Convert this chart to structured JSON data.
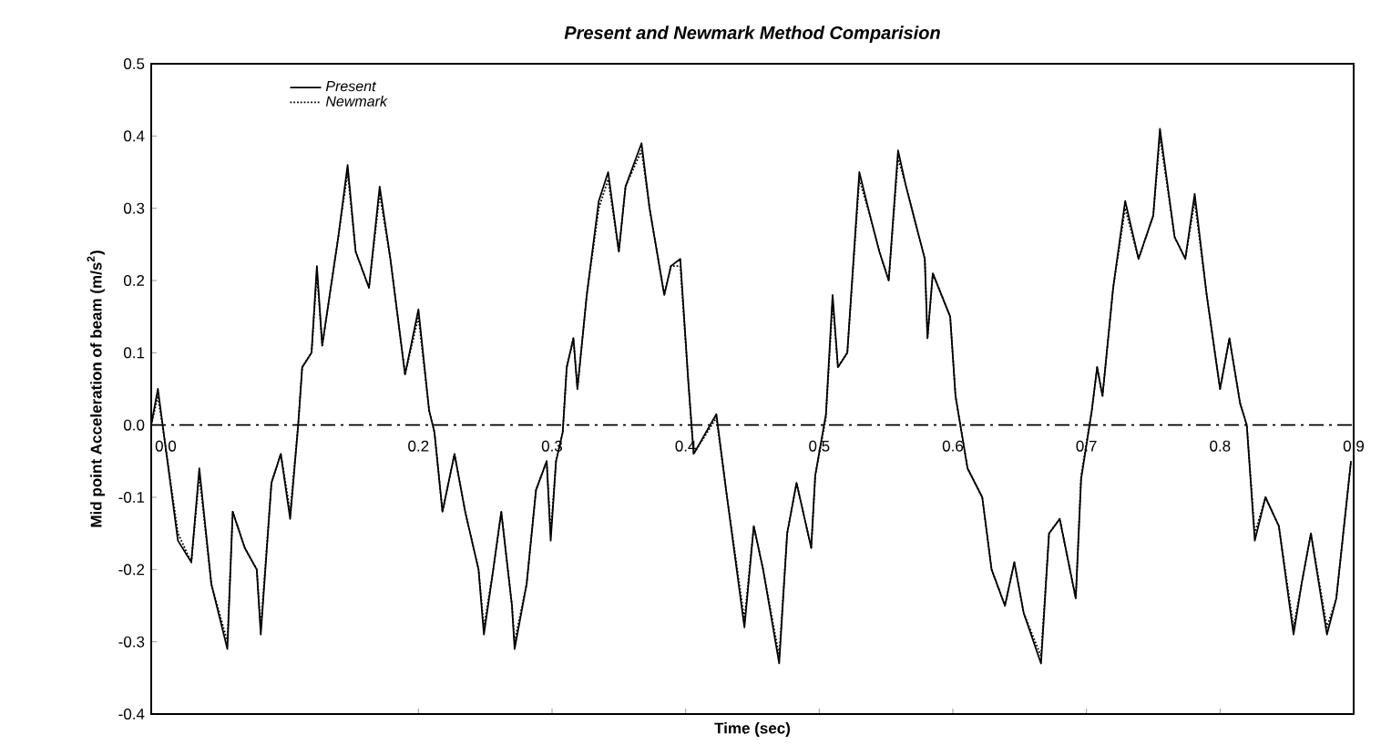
{
  "chart_data": {
    "type": "line",
    "title": "Present and Newmark Method Comparision",
    "xlabel": "Time (sec)",
    "ylabel": "Mid point Acceleration of beam (m/s$^{2}$)",
    "xlim": [
      0,
      0.9
    ],
    "ylim": [
      -0.4,
      0.5
    ],
    "ref_lines": [
      {
        "axis": "y",
        "value": 0,
        "color": "#000000",
        "line_style": "dashdot"
      }
    ],
    "xticks": [
      {
        "value": 0,
        "label": "0.0"
      },
      0.2,
      0.3,
      0.4,
      0.5,
      0.6,
      0.7,
      0.8,
      0.9
    ],
    "yticks": [
      -0.4,
      -0.3,
      -0.2,
      -0.1,
      {
        "value": 0,
        "label": "0.0"
      },
      0.1,
      0.2,
      0.3,
      0.4,
      0.5
    ],
    "legend": "top left",
    "series": [
      {
        "name": "Present",
        "color": "#000000",
        "line_style": "solid",
        "x": [
          0,
          0.005,
          0.01,
          0.02,
          0.03,
          0.036,
          0.045,
          0.057,
          0.061,
          0.07,
          0.079,
          0.082,
          0.09,
          0.097,
          0.104,
          0.11,
          0.113,
          0.12,
          0.124,
          0.128,
          0.14,
          0.147,
          0.153,
          0.163,
          0.171,
          0.179,
          0.19,
          0.2,
          0.208,
          0.212,
          0.218,
          0.227,
          0.235,
          0.245,
          0.249,
          0.256,
          0.262,
          0.27,
          0.272,
          0.281,
          0.288,
          0.296,
          0.299,
          0.303,
          0.308,
          0.311,
          0.316,
          0.319,
          0.326,
          0.335,
          0.342,
          0.35,
          0.355,
          0.367,
          0.373,
          0.384,
          0.389,
          0.396,
          0.402,
          0.406,
          0.423,
          0.431,
          0.444,
          0.451,
          0.458,
          0.47,
          0.476,
          0.483,
          0.494,
          0.497,
          0.505,
          0.51,
          0.514,
          0.521,
          0.53,
          0.538,
          0.545,
          0.552,
          0.559,
          0.565,
          0.579,
          0.581,
          0.585,
          0.598,
          0.602,
          0.611,
          0.622,
          0.629,
          0.639,
          0.646,
          0.653,
          0.666,
          0.672,
          0.68,
          0.692,
          0.696,
          0.704,
          0.708,
          0.712,
          0.72,
          0.729,
          0.739,
          0.75,
          0.755,
          0.766,
          0.774,
          0.781,
          0.79,
          0.8,
          0.807,
          0.815,
          0.82,
          0.826,
          0.834,
          0.844,
          0.855,
          0.861,
          0.868,
          0.88,
          0.887,
          0.898
        ],
        "values": [
          0,
          0.05,
          -0.02,
          -0.16,
          -0.19,
          -0.06,
          -0.22,
          -0.31,
          -0.12,
          -0.17,
          -0.2,
          -0.29,
          -0.08,
          -0.04,
          -0.13,
          0.0,
          0.08,
          0.1,
          0.22,
          0.11,
          0.26,
          0.36,
          0.24,
          0.19,
          0.33,
          0.23,
          0.07,
          0.16,
          0.02,
          -0.01,
          -0.12,
          -0.04,
          -0.12,
          -0.2,
          -0.29,
          -0.2,
          -0.12,
          -0.25,
          -0.31,
          -0.22,
          -0.09,
          -0.05,
          -0.16,
          -0.05,
          -0.01,
          0.08,
          0.12,
          0.05,
          0.18,
          0.31,
          0.35,
          0.24,
          0.33,
          0.39,
          0.3,
          0.18,
          0.22,
          0.23,
          0.06,
          -0.04,
          0.015,
          -0.1,
          -0.28,
          -0.14,
          -0.2,
          -0.33,
          -0.15,
          -0.08,
          -0.17,
          -0.07,
          0.015,
          0.18,
          0.08,
          0.1,
          0.35,
          0.29,
          0.24,
          0.2,
          0.38,
          0.33,
          0.23,
          0.12,
          0.21,
          0.15,
          0.04,
          -0.06,
          -0.1,
          -0.2,
          -0.25,
          -0.19,
          -0.26,
          -0.33,
          -0.15,
          -0.13,
          -0.24,
          -0.075,
          0.02,
          0.08,
          0.04,
          0.19,
          0.31,
          0.23,
          0.29,
          0.41,
          0.26,
          0.23,
          0.32,
          0.18,
          0.05,
          0.12,
          0.03,
          0.0,
          -0.16,
          -0.1,
          -0.14,
          -0.29,
          -0.22,
          -0.15,
          -0.29,
          -0.24,
          -0.05
        ]
      },
      {
        "name": "Newmark",
        "color": "#000000",
        "line_style": "dotted",
        "x": [
          0,
          0.005,
          0.01,
          0.02,
          0.03,
          0.036,
          0.045,
          0.057,
          0.061,
          0.07,
          0.079,
          0.082,
          0.09,
          0.097,
          0.104,
          0.11,
          0.113,
          0.12,
          0.124,
          0.128,
          0.14,
          0.147,
          0.153,
          0.163,
          0.171,
          0.179,
          0.19,
          0.2,
          0.208,
          0.212,
          0.218,
          0.227,
          0.235,
          0.245,
          0.249,
          0.256,
          0.262,
          0.27,
          0.272,
          0.281,
          0.288,
          0.296,
          0.299,
          0.303,
          0.308,
          0.311,
          0.316,
          0.319,
          0.326,
          0.335,
          0.342,
          0.35,
          0.355,
          0.367,
          0.373,
          0.384,
          0.389,
          0.396,
          0.402,
          0.406,
          0.423,
          0.431,
          0.444,
          0.451,
          0.458,
          0.47,
          0.476,
          0.483,
          0.494,
          0.497,
          0.505,
          0.51,
          0.514,
          0.521,
          0.53,
          0.538,
          0.545,
          0.552,
          0.559,
          0.565,
          0.579,
          0.581,
          0.585,
          0.598,
          0.602,
          0.611,
          0.622,
          0.629,
          0.639,
          0.646,
          0.653,
          0.666,
          0.672,
          0.68,
          0.692,
          0.696,
          0.704,
          0.708,
          0.712,
          0.72,
          0.729,
          0.739,
          0.75,
          0.755,
          0.766,
          0.774,
          0.781,
          0.79,
          0.8,
          0.807,
          0.815,
          0.82,
          0.826,
          0.834,
          0.844,
          0.855,
          0.861,
          0.868,
          0.88,
          0.887,
          0.898
        ],
        "values": [
          0,
          0.04,
          -0.02,
          -0.15,
          -0.19,
          -0.07,
          -0.22,
          -0.3,
          -0.12,
          -0.17,
          -0.2,
          -0.28,
          -0.08,
          -0.04,
          -0.12,
          0.0,
          0.08,
          0.1,
          0.21,
          0.11,
          0.26,
          0.35,
          0.24,
          0.19,
          0.32,
          0.23,
          0.07,
          0.15,
          0.02,
          -0.01,
          -0.12,
          -0.04,
          -0.12,
          -0.2,
          -0.28,
          -0.2,
          -0.12,
          -0.25,
          -0.3,
          -0.22,
          -0.09,
          -0.05,
          -0.15,
          -0.05,
          -0.01,
          0.08,
          0.12,
          0.05,
          0.18,
          0.3,
          0.34,
          0.24,
          0.33,
          0.38,
          0.3,
          0.18,
          0.22,
          0.22,
          0.06,
          -0.04,
          0.01,
          -0.1,
          -0.27,
          -0.14,
          -0.2,
          -0.32,
          -0.15,
          -0.08,
          -0.17,
          -0.07,
          0.01,
          0.17,
          0.08,
          0.1,
          0.34,
          0.29,
          0.24,
          0.2,
          0.37,
          0.33,
          0.23,
          0.12,
          0.21,
          0.15,
          0.04,
          -0.06,
          -0.1,
          -0.2,
          -0.25,
          -0.19,
          -0.26,
          -0.32,
          -0.15,
          -0.13,
          -0.24,
          -0.07,
          0.02,
          0.08,
          0.04,
          0.19,
          0.3,
          0.23,
          0.29,
          0.4,
          0.26,
          0.23,
          0.31,
          0.18,
          0.05,
          0.12,
          0.03,
          0.0,
          -0.15,
          -0.1,
          -0.14,
          -0.28,
          -0.22,
          -0.15,
          -0.28,
          -0.24,
          -0.05
        ]
      }
    ]
  }
}
